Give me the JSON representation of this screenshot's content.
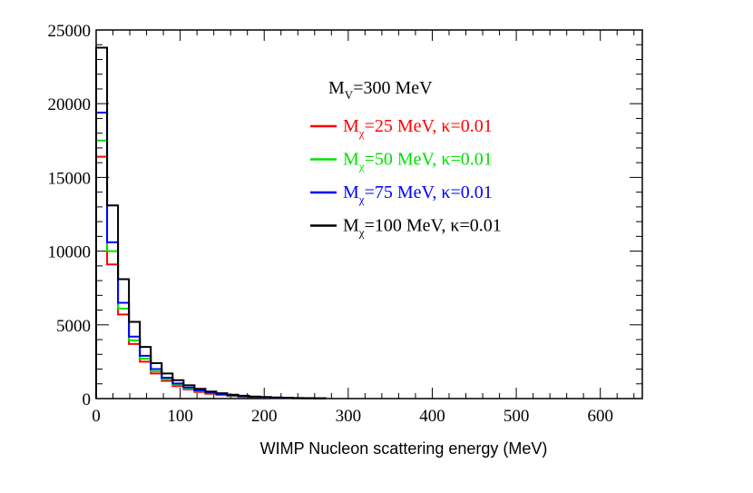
{
  "chart_data": {
    "type": "histogram",
    "title": "",
    "xlabel": "WIMP Nucleon scattering energy (MeV)",
    "ylabel": "",
    "xlim": [
      0,
      650
    ],
    "ylim": [
      0,
      25000
    ],
    "x_ticks": [
      {
        "value": 0,
        "label": "0"
      },
      {
        "value": 100,
        "label": "100"
      },
      {
        "value": 200,
        "label": "200"
      },
      {
        "value": 300,
        "label": "300"
      },
      {
        "value": 400,
        "label": "400"
      },
      {
        "value": 500,
        "label": "500"
      },
      {
        "value": 600,
        "label": "600"
      }
    ],
    "y_ticks": [
      {
        "value": 0,
        "label": "0"
      },
      {
        "value": 5000,
        "label": "5000"
      },
      {
        "value": 10000,
        "label": "10000"
      },
      {
        "value": 15000,
        "label": "15000"
      },
      {
        "value": 20000,
        "label": "20000"
      },
      {
        "value": 25000,
        "label": "25000"
      }
    ],
    "bin_edges": [
      0,
      13,
      26,
      39,
      52,
      65,
      78,
      91,
      104,
      117,
      130,
      143,
      156,
      169,
      182,
      195,
      208,
      221,
      234,
      247,
      260,
      273
    ],
    "annotation": {
      "base": "M",
      "sub": "V",
      "rest": "=300 MeV"
    },
    "series": [
      {
        "name": "Mχ=25 MeV, κ=0.01",
        "label_base": "M",
        "label_sub": "χ",
        "label_rest": "=25 MeV, κ=0.01",
        "color": "#ff0000",
        "values": [
          16400,
          9100,
          5700,
          3700,
          2500,
          1700,
          1200,
          850,
          620,
          450,
          320,
          240,
          180,
          130,
          95,
          70,
          50,
          36,
          26,
          18,
          12
        ]
      },
      {
        "name": "Mχ=50 MeV, κ=0.01",
        "label_base": "M",
        "label_sub": "χ",
        "label_rest": "=50 MeV, κ=0.01",
        "color": "#00e000",
        "values": [
          17500,
          10000,
          6100,
          3950,
          2700,
          1850,
          1300,
          930,
          680,
          500,
          360,
          270,
          200,
          145,
          105,
          78,
          56,
          40,
          29,
          20,
          14
        ]
      },
      {
        "name": "Mχ=75 MeV, κ=0.01",
        "label_base": "M",
        "label_sub": "χ",
        "label_rest": "=75 MeV, κ=0.01",
        "color": "#0000ff",
        "values": [
          19400,
          10600,
          6500,
          4200,
          2900,
          2000,
          1420,
          1020,
          750,
          550,
          400,
          300,
          220,
          160,
          118,
          86,
          62,
          45,
          32,
          23,
          16
        ]
      },
      {
        "name": "Mχ=100 MeV, κ=0.01",
        "label_base": "M",
        "label_sub": "χ",
        "label_rest": "=100 MeV, κ=0.01",
        "color": "#000000",
        "values": [
          23800,
          13100,
          8100,
          5200,
          3500,
          2400,
          1700,
          1250,
          900,
          660,
          480,
          360,
          265,
          195,
          142,
          104,
          76,
          55,
          40,
          28,
          19
        ]
      }
    ]
  }
}
